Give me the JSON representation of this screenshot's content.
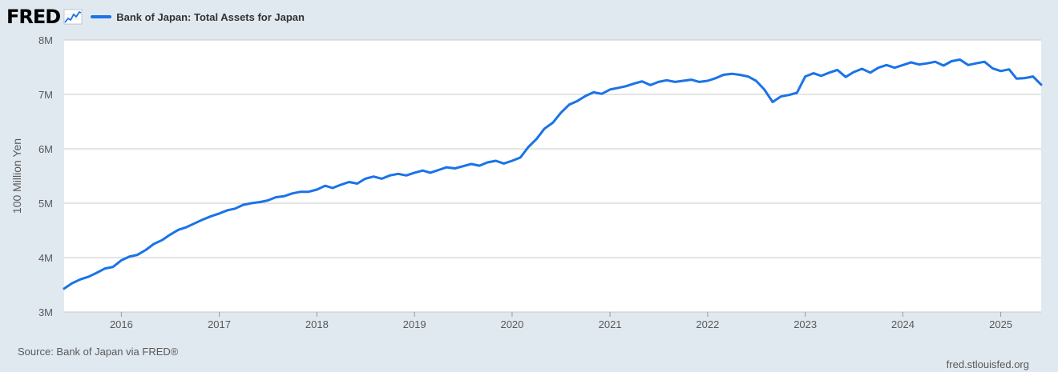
{
  "header": {
    "logo_text": "FRED",
    "legend_label": "Bank of Japan: Total Assets for Japan"
  },
  "footer": {
    "source": "Source: Bank of Japan via FRED®",
    "site": "fred.stlouisfed.org"
  },
  "colors": {
    "series": "#1a73e8",
    "background": "#e1e9f0",
    "plot": "#ffffff",
    "grid": "#c8c8c8"
  },
  "icons": {
    "logo": "fred-line-graph-icon"
  },
  "chart_data": {
    "type": "line",
    "title": "Bank of Japan: Total Assets for Japan",
    "ylabel": "100 Million Yen",
    "xlabel": "",
    "xlim": [
      "2015-06-01",
      "2025-06-01"
    ],
    "ylim": [
      3000000,
      8000000
    ],
    "yticks": [
      {
        "value": 3000000,
        "label": "3M"
      },
      {
        "value": 4000000,
        "label": "4M"
      },
      {
        "value": 5000000,
        "label": "5M"
      },
      {
        "value": 6000000,
        "label": "6M"
      },
      {
        "value": 7000000,
        "label": "7M"
      },
      {
        "value": 8000000,
        "label": "8M"
      }
    ],
    "xticks": [
      "2016",
      "2017",
      "2018",
      "2019",
      "2020",
      "2021",
      "2022",
      "2023",
      "2024",
      "2025"
    ],
    "grid": true,
    "legend": "top-left",
    "series": [
      {
        "name": "Bank of Japan: Total Assets for Japan",
        "points": [
          [
            "2015-06",
            3430000
          ],
          [
            "2015-07",
            3530000
          ],
          [
            "2015-08",
            3600000
          ],
          [
            "2015-09",
            3650000
          ],
          [
            "2015-10",
            3720000
          ],
          [
            "2015-11",
            3800000
          ],
          [
            "2015-12",
            3830000
          ],
          [
            "2016-01",
            3950000
          ],
          [
            "2016-02",
            4020000
          ],
          [
            "2016-03",
            4050000
          ],
          [
            "2016-04",
            4140000
          ],
          [
            "2016-05",
            4250000
          ],
          [
            "2016-06",
            4320000
          ],
          [
            "2016-07",
            4420000
          ],
          [
            "2016-08",
            4510000
          ],
          [
            "2016-09",
            4560000
          ],
          [
            "2016-10",
            4630000
          ],
          [
            "2016-11",
            4700000
          ],
          [
            "2016-12",
            4760000
          ],
          [
            "2017-01",
            4810000
          ],
          [
            "2017-02",
            4870000
          ],
          [
            "2017-03",
            4900000
          ],
          [
            "2017-04",
            4970000
          ],
          [
            "2017-05",
            5000000
          ],
          [
            "2017-06",
            5020000
          ],
          [
            "2017-07",
            5050000
          ],
          [
            "2017-08",
            5110000
          ],
          [
            "2017-09",
            5130000
          ],
          [
            "2017-10",
            5180000
          ],
          [
            "2017-11",
            5210000
          ],
          [
            "2017-12",
            5210000
          ],
          [
            "2018-01",
            5250000
          ],
          [
            "2018-02",
            5320000
          ],
          [
            "2018-03",
            5280000
          ],
          [
            "2018-04",
            5340000
          ],
          [
            "2018-05",
            5390000
          ],
          [
            "2018-06",
            5360000
          ],
          [
            "2018-07",
            5450000
          ],
          [
            "2018-08",
            5490000
          ],
          [
            "2018-09",
            5450000
          ],
          [
            "2018-10",
            5510000
          ],
          [
            "2018-11",
            5540000
          ],
          [
            "2018-12",
            5510000
          ],
          [
            "2019-01",
            5560000
          ],
          [
            "2019-02",
            5600000
          ],
          [
            "2019-03",
            5560000
          ],
          [
            "2019-04",
            5610000
          ],
          [
            "2019-05",
            5660000
          ],
          [
            "2019-06",
            5640000
          ],
          [
            "2019-07",
            5680000
          ],
          [
            "2019-08",
            5720000
          ],
          [
            "2019-09",
            5690000
          ],
          [
            "2019-10",
            5750000
          ],
          [
            "2019-11",
            5780000
          ],
          [
            "2019-12",
            5730000
          ],
          [
            "2020-01",
            5780000
          ],
          [
            "2020-02",
            5840000
          ],
          [
            "2020-03",
            6030000
          ],
          [
            "2020-04",
            6180000
          ],
          [
            "2020-05",
            6370000
          ],
          [
            "2020-06",
            6480000
          ],
          [
            "2020-07",
            6660000
          ],
          [
            "2020-08",
            6810000
          ],
          [
            "2020-09",
            6880000
          ],
          [
            "2020-10",
            6970000
          ],
          [
            "2020-11",
            7040000
          ],
          [
            "2020-12",
            7010000
          ],
          [
            "2021-01",
            7090000
          ],
          [
            "2021-02",
            7120000
          ],
          [
            "2021-03",
            7150000
          ],
          [
            "2021-04",
            7200000
          ],
          [
            "2021-05",
            7240000
          ],
          [
            "2021-06",
            7170000
          ],
          [
            "2021-07",
            7230000
          ],
          [
            "2021-08",
            7260000
          ],
          [
            "2021-09",
            7230000
          ],
          [
            "2021-10",
            7250000
          ],
          [
            "2021-11",
            7270000
          ],
          [
            "2021-12",
            7230000
          ],
          [
            "2022-01",
            7250000
          ],
          [
            "2022-02",
            7300000
          ],
          [
            "2022-03",
            7360000
          ],
          [
            "2022-04",
            7380000
          ],
          [
            "2022-05",
            7360000
          ],
          [
            "2022-06",
            7330000
          ],
          [
            "2022-07",
            7250000
          ],
          [
            "2022-08",
            7090000
          ],
          [
            "2022-09",
            6860000
          ],
          [
            "2022-10",
            6960000
          ],
          [
            "2022-11",
            6990000
          ],
          [
            "2022-12",
            7030000
          ],
          [
            "2023-01",
            7330000
          ],
          [
            "2023-02",
            7390000
          ],
          [
            "2023-03",
            7340000
          ],
          [
            "2023-04",
            7400000
          ],
          [
            "2023-05",
            7450000
          ],
          [
            "2023-06",
            7320000
          ],
          [
            "2023-07",
            7410000
          ],
          [
            "2023-08",
            7470000
          ],
          [
            "2023-09",
            7400000
          ],
          [
            "2023-10",
            7490000
          ],
          [
            "2023-11",
            7540000
          ],
          [
            "2023-12",
            7490000
          ],
          [
            "2024-01",
            7540000
          ],
          [
            "2024-02",
            7590000
          ],
          [
            "2024-03",
            7550000
          ],
          [
            "2024-04",
            7570000
          ],
          [
            "2024-05",
            7600000
          ],
          [
            "2024-06",
            7530000
          ],
          [
            "2024-07",
            7610000
          ],
          [
            "2024-08",
            7640000
          ],
          [
            "2024-09",
            7540000
          ],
          [
            "2024-10",
            7570000
          ],
          [
            "2024-11",
            7600000
          ],
          [
            "2024-12",
            7480000
          ],
          [
            "2025-01",
            7430000
          ],
          [
            "2025-02",
            7460000
          ],
          [
            "2025-03",
            7290000
          ],
          [
            "2025-04",
            7300000
          ],
          [
            "2025-05",
            7330000
          ],
          [
            "2025-06",
            7180000
          ]
        ]
      }
    ]
  }
}
